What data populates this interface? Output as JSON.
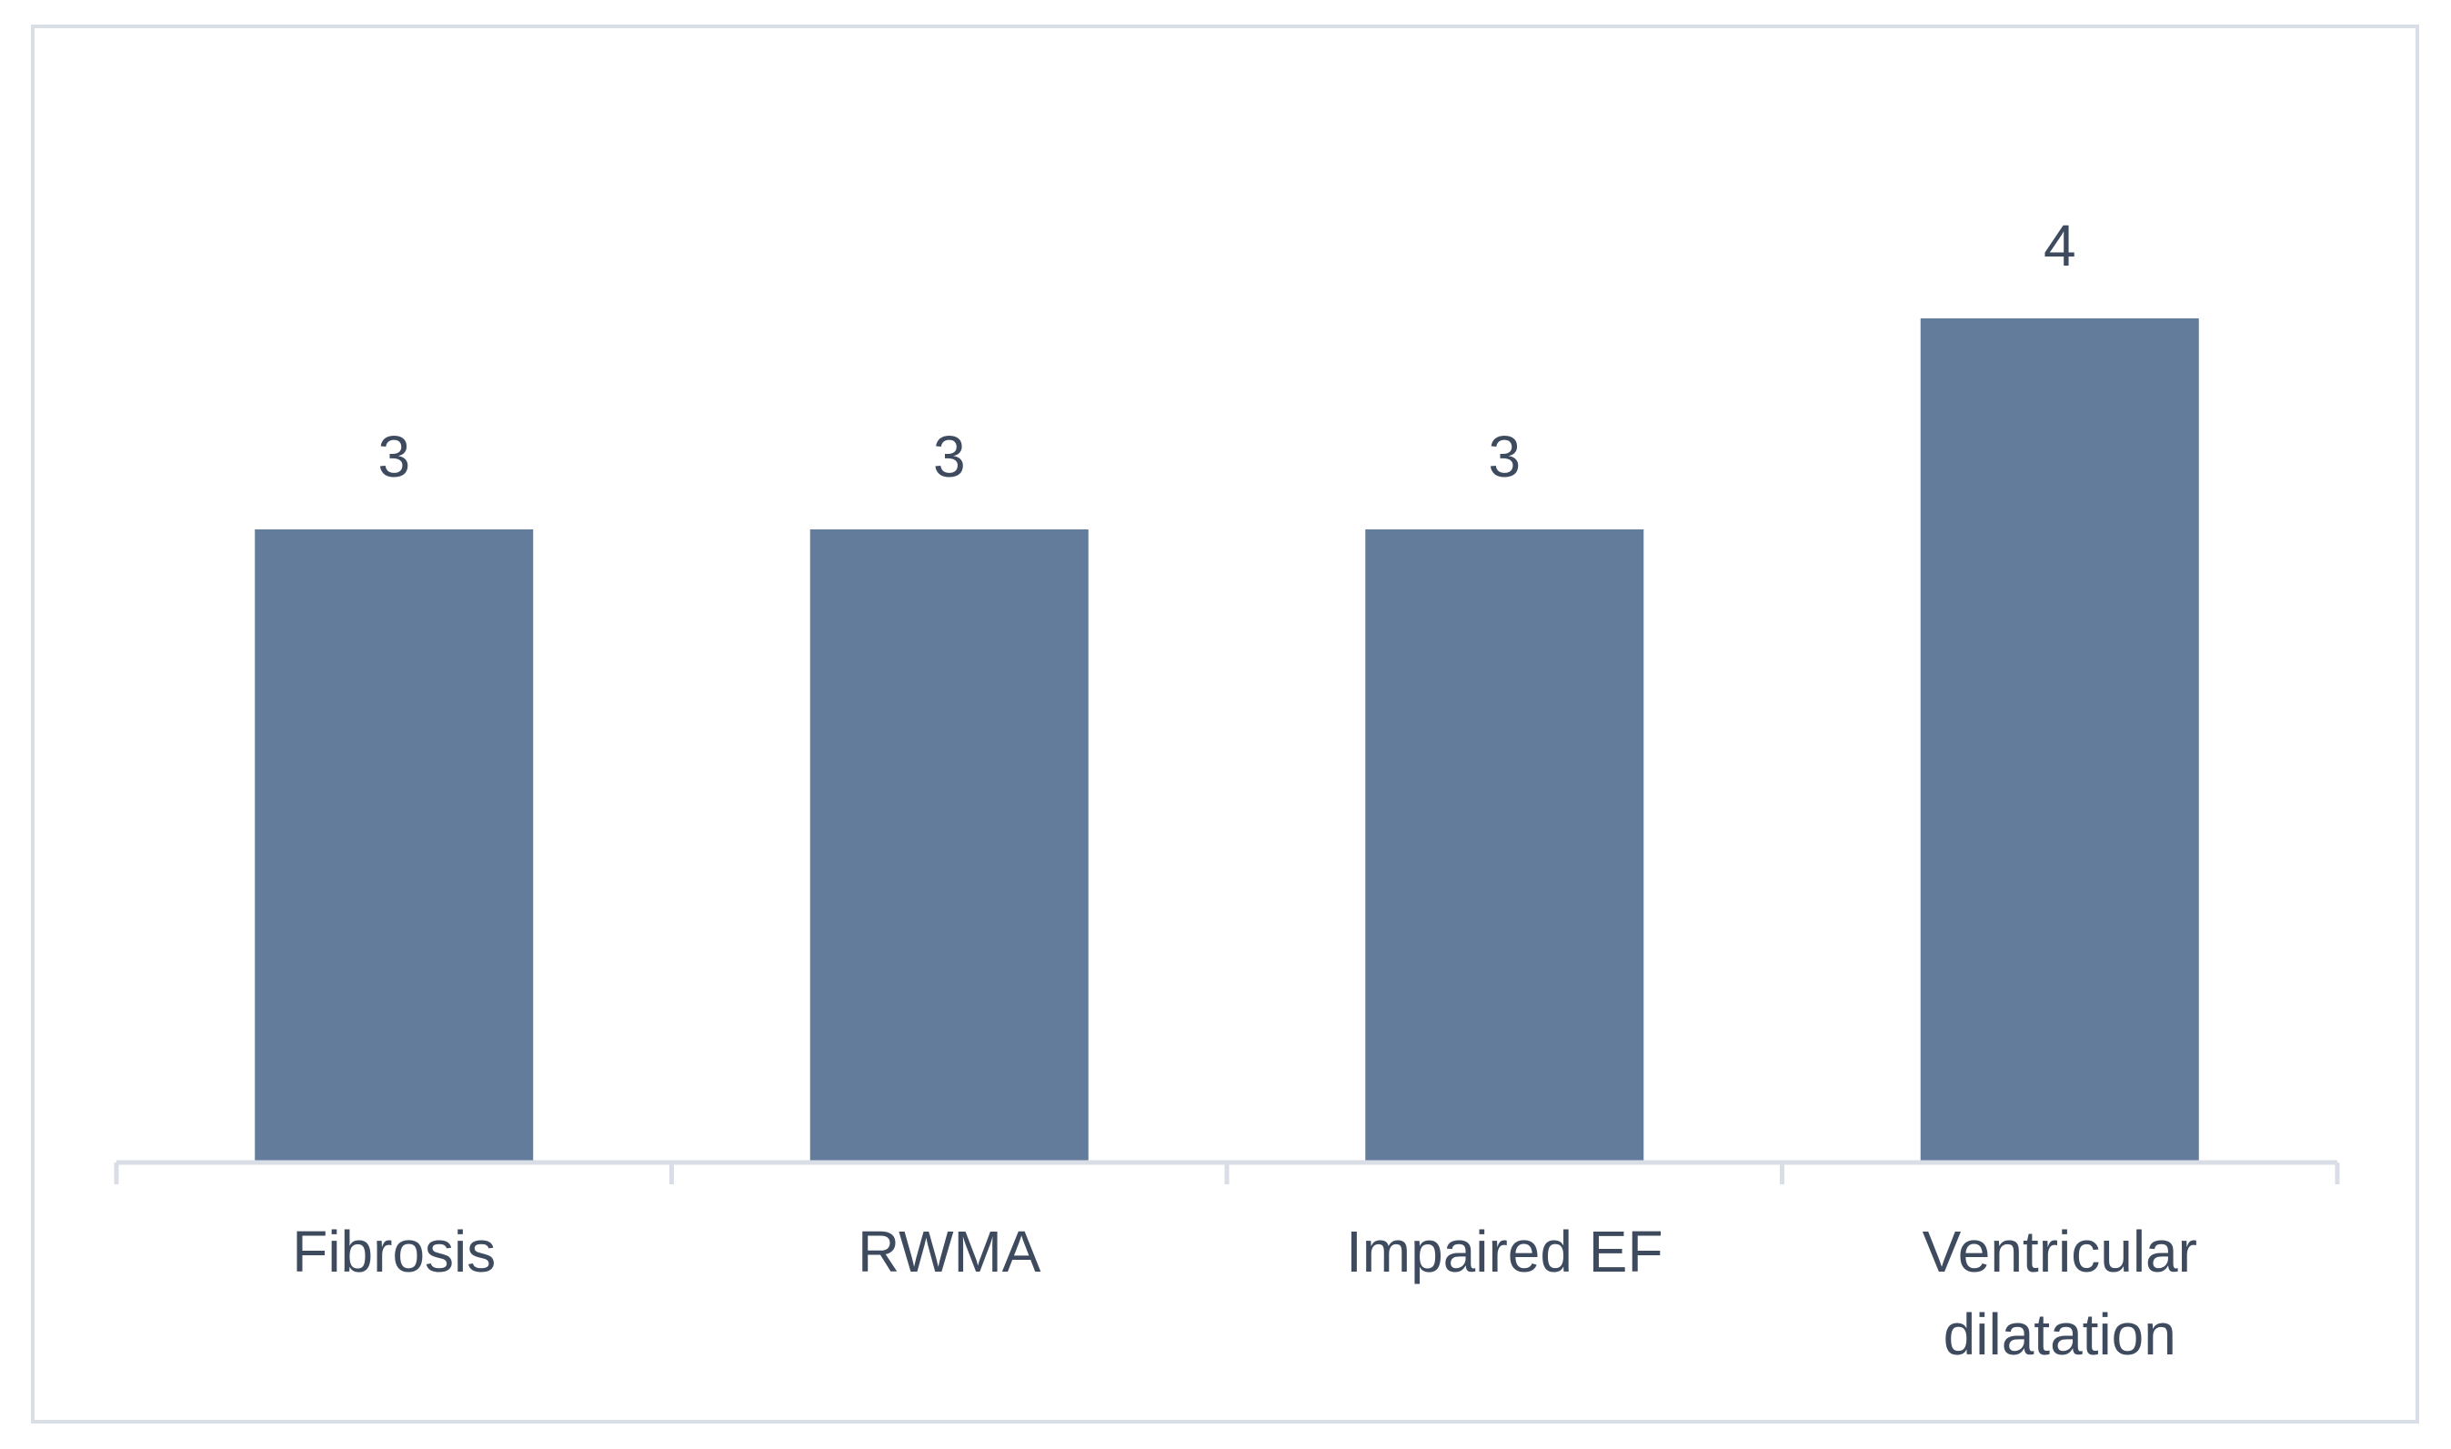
{
  "chart_data": {
    "type": "bar",
    "categories": [
      "Fibrosis",
      "RWMA",
      "Impaired EF",
      "Ventricular dilatation"
    ],
    "category_lines": [
      [
        "Fibrosis"
      ],
      [
        "RWMA"
      ],
      [
        "Impaired EF"
      ],
      [
        "Ventricular",
        "dilatation"
      ]
    ],
    "values": [
      3,
      3,
      3,
      4
    ],
    "data_labels": [
      "3",
      "3",
      "3",
      "4"
    ],
    "title": "",
    "xlabel": "",
    "ylabel": "",
    "ylim": [
      0,
      4
    ],
    "grid": false,
    "legend": "none",
    "colors": {
      "bar": "#647c9b",
      "text": "#3e4a5e",
      "axis": "#d9dee6",
      "frame": "#d9dee6"
    }
  }
}
